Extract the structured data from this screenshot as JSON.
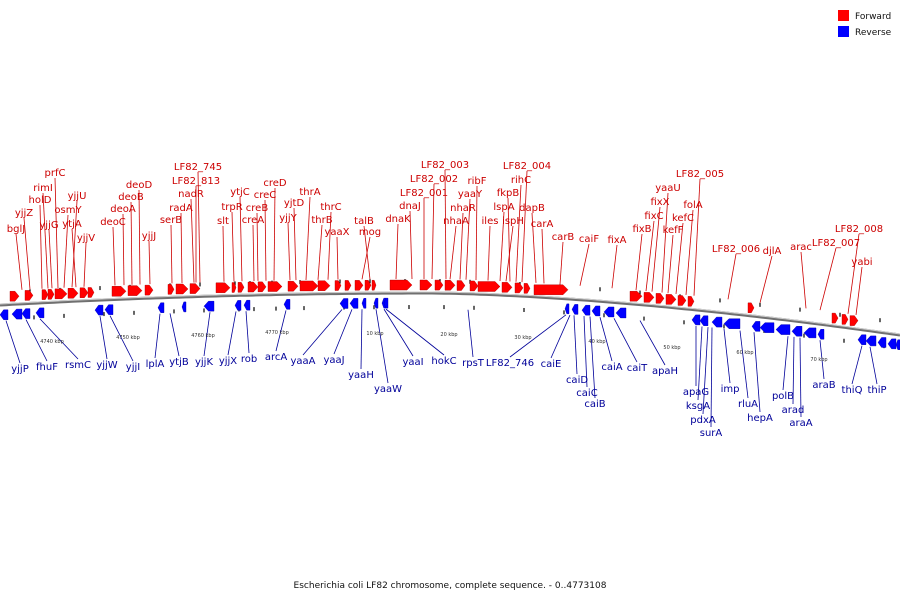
{
  "caption": "Escherichia coli LF82 chromosome, complete sequence. - 0..4773108",
  "colors": {
    "forward": "#ff0000",
    "forward_label": "#cc0000",
    "reverse": "#0000ff",
    "reverse_label": "#000099",
    "backbone": "#707070",
    "tick": "#000000"
  },
  "legend": [
    {
      "name": "Forward",
      "color": "#ff0000"
    },
    {
      "name": "Reverse",
      "color": "#0000ff"
    }
  ],
  "kbp_ticks": [
    "4740 kbp",
    "4750 kbp",
    "4760 kbp",
    "4770 kbp",
    "10 kbp",
    "20 kbp",
    "30 kbp",
    "40 kbp",
    "50 kbp",
    "60 kbp",
    "70 kbp"
  ],
  "forward_labels": [
    "bglJ",
    "yjjZ",
    "holD",
    "rimI",
    "prfC",
    "yjjG",
    "osmY",
    "yjjU",
    "ytjA",
    "yjjV",
    "deoC",
    "deoA",
    "deoB",
    "deoD",
    "yjjJ",
    "serB",
    "radA",
    "nadR",
    "LF82_813",
    "LF82_745",
    "slt",
    "trpR",
    "ytjC",
    "creA",
    "creB",
    "creC",
    "creD",
    "yjjY",
    "yjtD",
    "thrA",
    "thrB",
    "thrC",
    "yaaX",
    "mog",
    "talB",
    "dnaK",
    "dnaJ",
    "LF82_001",
    "LF82_002",
    "LF82_003",
    "nhaA",
    "nhaR",
    "yaaY",
    "ribF",
    "iles",
    "lspA",
    "ispH",
    "fkpB",
    "rihC",
    "LF82_004",
    "dapB",
    "carA",
    "carB",
    "caiF",
    "fixA",
    "fixB",
    "fixC",
    "fixX",
    "yaaU",
    "kefF",
    "kefC",
    "folA",
    "LF82_005",
    "LF82_006",
    "djlA",
    "arac",
    "LF82_007",
    "LF82_008",
    "yabi"
  ],
  "reverse_labels": [
    "yjjP",
    "fhuF",
    "rsmC",
    "yjjW",
    "yjjI",
    "lplA",
    "ytjB",
    "yjjK",
    "yjjX",
    "rob",
    "arcA",
    "yaaA",
    "yaaJ",
    "yaaH",
    "yaaW",
    "yaaI",
    "hokC",
    "rpsT",
    "LF82_746",
    "caiE",
    "caiD",
    "caiC",
    "caiB",
    "caiA",
    "caiT",
    "apaH",
    "apaG",
    "ksgA",
    "pdxA",
    "surA",
    "imp",
    "rluA",
    "hepA",
    "polB",
    "arad",
    "araA",
    "araB",
    "thiQ",
    "thiP"
  ]
}
